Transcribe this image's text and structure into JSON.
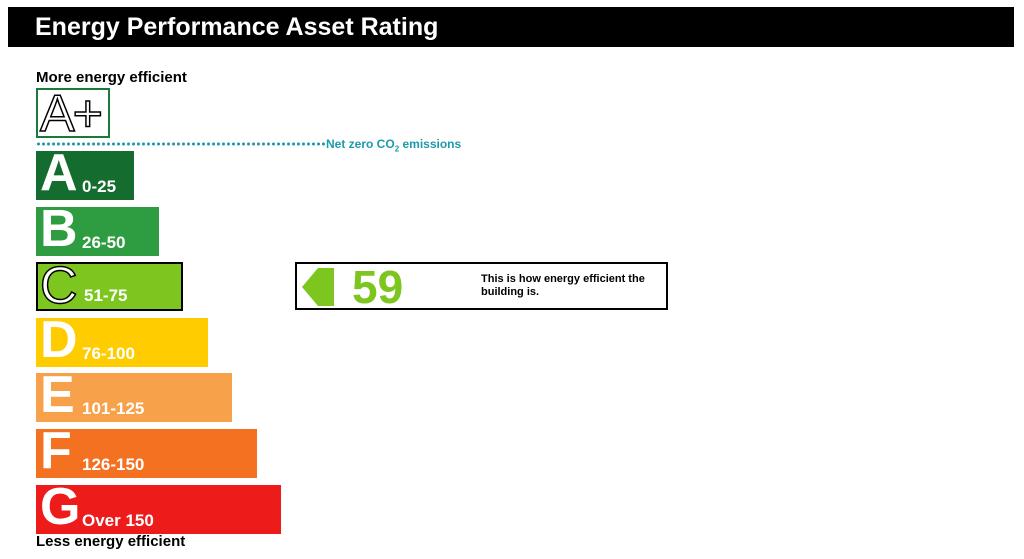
{
  "header": {
    "title": "Energy Performance Asset Rating"
  },
  "labels": {
    "top": "More energy efficient",
    "bottom": "Less energy efficient",
    "net_zero_prefix": "Net zero CO",
    "net_zero_sub": "2",
    "net_zero_suffix": " emissions",
    "aplus": "A+"
  },
  "chart_data": {
    "type": "bar",
    "bands": [
      {
        "letter": "A",
        "range": "0-25",
        "color": "#146c2e",
        "order": 1
      },
      {
        "letter": "B",
        "range": "26-50",
        "color": "#2e9d42",
        "order": 2
      },
      {
        "letter": "C",
        "range": "51-75",
        "color": "#7dc61f",
        "order": 3
      },
      {
        "letter": "D",
        "range": "76-100",
        "color": "#ffcc00",
        "order": 4
      },
      {
        "letter": "E",
        "range": "101-125",
        "color": "#f8a14b",
        "order": 5
      },
      {
        "letter": "F",
        "range": "126-150",
        "color": "#f47121",
        "order": 6
      },
      {
        "letter": "G",
        "range": "Over 150",
        "color": "#ee1b1b",
        "order": 7
      }
    ],
    "current_band": "C",
    "current_score": "59",
    "current_color": "#7dc61f",
    "indicator_text": "This is how energy efficient the building is."
  }
}
